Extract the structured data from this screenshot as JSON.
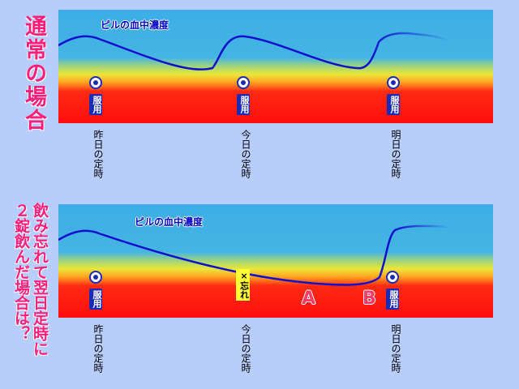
{
  "normal": {
    "title": "通常の場合",
    "curve_label": "ピルの血中濃度",
    "doses": [
      {
        "label": "服用"
      },
      {
        "label": "服用"
      },
      {
        "label": "服用"
      }
    ],
    "time_labels": [
      "昨日の定時",
      "今日の定時",
      "明日の定時"
    ]
  },
  "missed": {
    "title_lines": [
      "飲み忘れて翌日定時に",
      "２錠飲んだ場合は？"
    ],
    "curve_label": "ピルの血中濃度",
    "doses": [
      {
        "label": "服用"
      },
      {
        "label": "服用"
      }
    ],
    "missed_label": "×忘れ",
    "point_labels": [
      "A",
      "B"
    ],
    "time_labels": [
      "昨日の定時",
      "今日の定時",
      "明日の定時"
    ]
  },
  "colors": {
    "background": "#b7cdfb",
    "title": "#ff1f7a",
    "curve": "#1010cc",
    "dose_box": "#1a2bb8",
    "missed_box": "#ffff33",
    "point_label": "#ff3b67",
    "band_top": "#3daee6",
    "band_yellow": "#e7e63c",
    "band_red": "#ff1010"
  },
  "icons": {
    "dose_marker": "double-circle-icon"
  }
}
